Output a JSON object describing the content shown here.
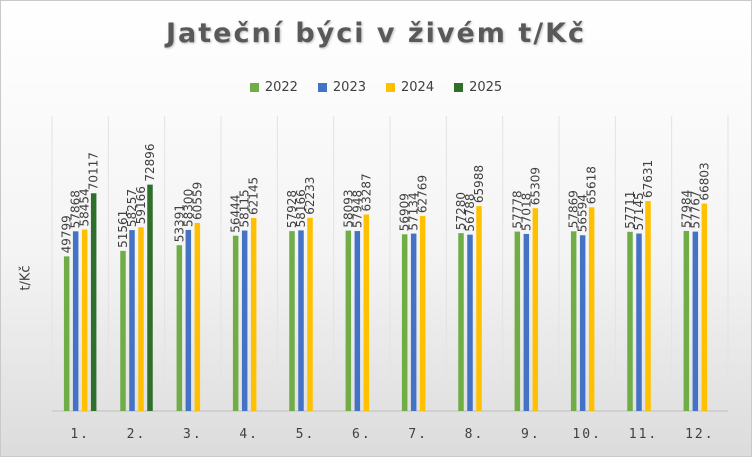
{
  "chart_data": {
    "type": "bar",
    "title": "Jateční býci v živém t/Kč",
    "ylabel": "t/Kč",
    "xlabel": "",
    "categories": [
      "1.",
      "2.",
      "3.",
      "4.",
      "5.",
      "6.",
      "7.",
      "8.",
      "9.",
      "10.",
      "11.",
      "12."
    ],
    "ylim": [
      0,
      95000
    ],
    "grid": "vertical",
    "legend_position": "top",
    "series": [
      {
        "name": "2022",
        "color": "#70ad47",
        "values": [
          49799,
          51561,
          53391,
          56444,
          57928,
          58093,
          56909,
          57280,
          57778,
          57869,
          57711,
          57984
        ]
      },
      {
        "name": "2023",
        "color": "#4472c4",
        "values": [
          57868,
          58257,
          58300,
          58115,
          58166,
          57948,
          57134,
          56788,
          57018,
          56594,
          57145,
          57767
        ]
      },
      {
        "name": "2024",
        "color": "#ffc000",
        "values": [
          58454,
          59166,
          60559,
          62145,
          62233,
          63287,
          62769,
          65988,
          65309,
          65618,
          67631,
          66803
        ]
      },
      {
        "name": "2025",
        "color": "#2e6f2a",
        "values": [
          70117,
          72896,
          null,
          null,
          null,
          null,
          null,
          null,
          null,
          null,
          null,
          null
        ]
      }
    ]
  }
}
